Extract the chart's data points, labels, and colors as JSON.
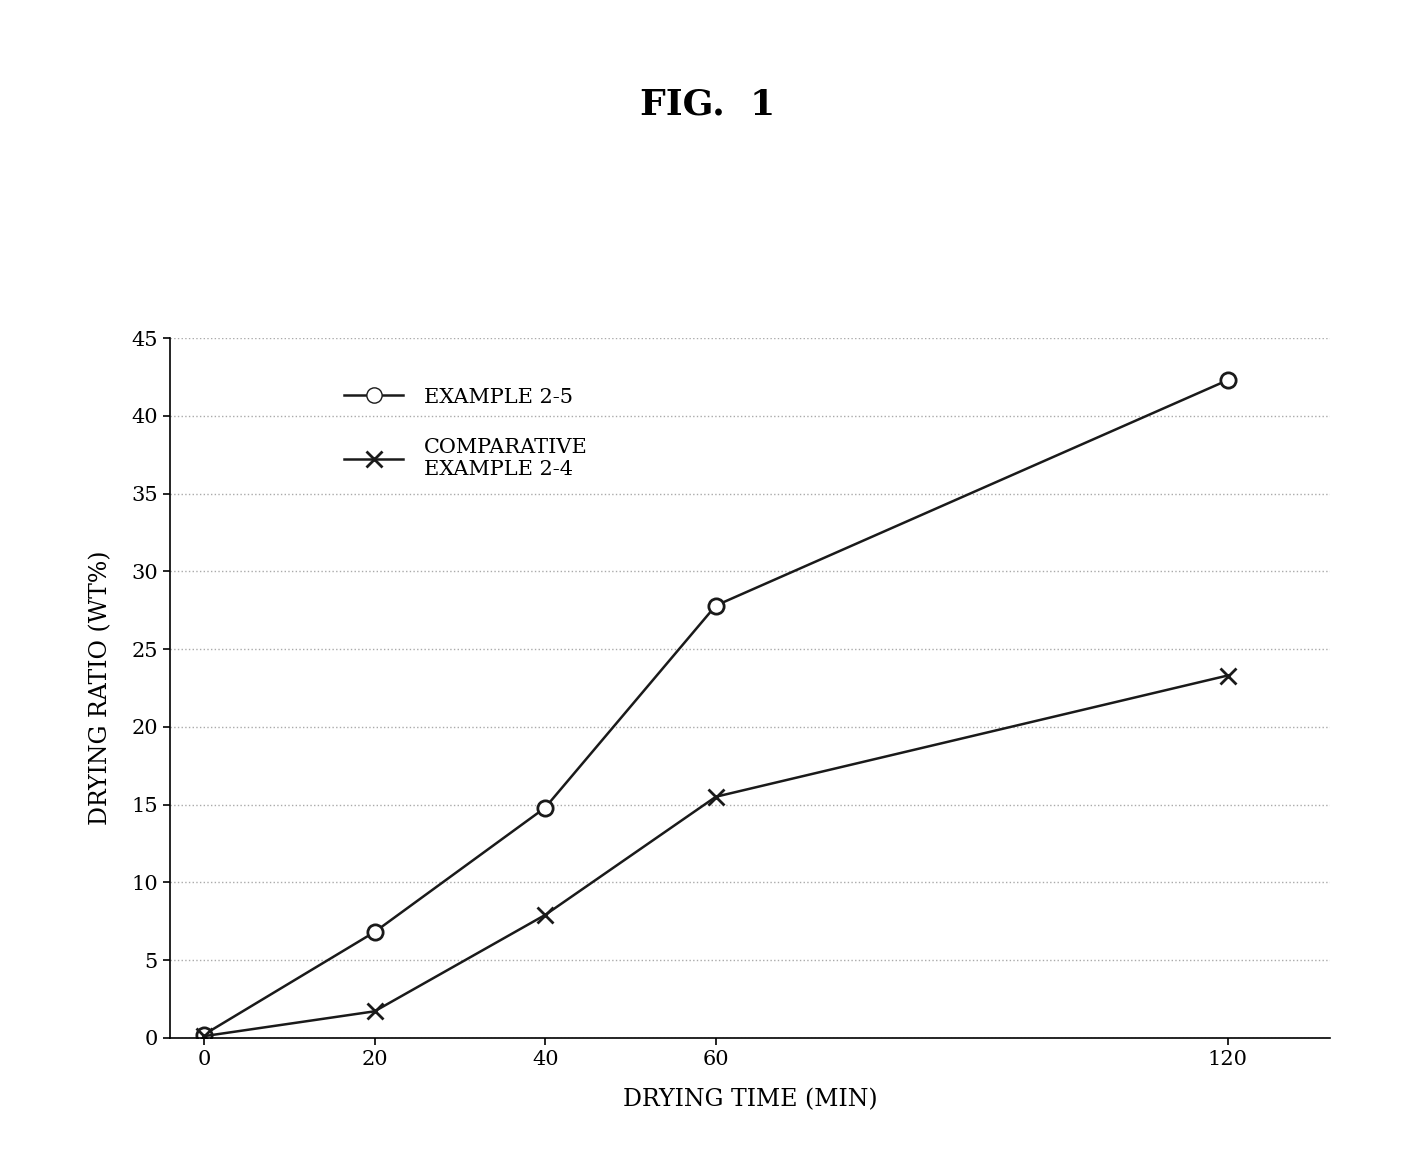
{
  "title": "FIG.  1",
  "xlabel": "DRYING TIME (MIN)",
  "ylabel": "DRYING RATIO (WT%)",
  "series": [
    {
      "label": "EXAMPLE 2-5",
      "x": [
        0,
        20,
        40,
        60,
        120
      ],
      "y": [
        0.2,
        6.8,
        14.8,
        27.8,
        42.3
      ],
      "marker": "o",
      "color": "#1a1a1a",
      "markersize": 11,
      "linewidth": 1.8
    },
    {
      "label": "COMPARATIVE\nEXAMPLE 2-4",
      "x": [
        0,
        20,
        40,
        60,
        120
      ],
      "y": [
        0.1,
        1.7,
        7.9,
        15.5,
        23.3
      ],
      "marker": "x",
      "color": "#1a1a1a",
      "markersize": 12,
      "linewidth": 1.8
    }
  ],
  "xlim": [
    -4,
    132
  ],
  "ylim": [
    0,
    45
  ],
  "xticks": [
    0,
    20,
    40,
    60,
    120
  ],
  "yticks": [
    0,
    5,
    10,
    15,
    20,
    25,
    30,
    35,
    40,
    45
  ],
  "grid_color": "#aaaaaa",
  "background_color": "#ffffff",
  "title_fontsize": 26,
  "axis_label_fontsize": 17,
  "tick_fontsize": 15,
  "legend_fontsize": 15
}
